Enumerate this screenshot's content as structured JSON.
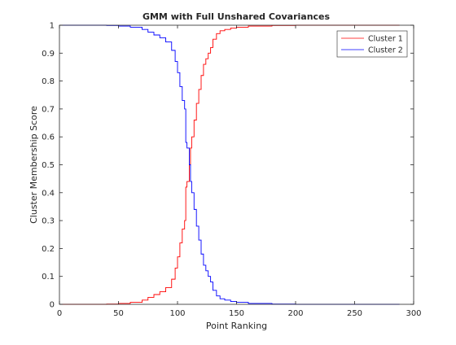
{
  "chart_data": {
    "type": "line",
    "title": "GMM with Full Unshared Covariances",
    "xlabel": "Point Ranking",
    "ylabel": "Cluster Membership Score",
    "xlim": [
      0,
      300
    ],
    "ylim": [
      0,
      1
    ],
    "xticks": [
      0,
      50,
      100,
      150,
      200,
      250,
      300
    ],
    "yticks": [
      0,
      0.1,
      0.2,
      0.3,
      0.4,
      0.5,
      0.6,
      0.7,
      0.8,
      0.9,
      1
    ],
    "grid": false,
    "legend": "top-right",
    "series": [
      {
        "name": "Cluster 1",
        "color": "#ff0000",
        "x": [
          1,
          20,
          40,
          50,
          60,
          70,
          75,
          80,
          85,
          90,
          95,
          98,
          100,
          102,
          104,
          106,
          107,
          108,
          110,
          111,
          112,
          114,
          116,
          118,
          120,
          122,
          124,
          126,
          128,
          130,
          133,
          136,
          140,
          145,
          150,
          160,
          180,
          200,
          250,
          288
        ],
        "values": [
          0,
          0,
          0.001,
          0.003,
          0.007,
          0.015,
          0.025,
          0.035,
          0.045,
          0.06,
          0.09,
          0.13,
          0.17,
          0.22,
          0.27,
          0.3,
          0.42,
          0.44,
          0.5,
          0.56,
          0.6,
          0.66,
          0.72,
          0.77,
          0.82,
          0.86,
          0.88,
          0.9,
          0.92,
          0.95,
          0.97,
          0.98,
          0.985,
          0.99,
          0.993,
          0.997,
          0.999,
          1,
          1,
          1
        ]
      },
      {
        "name": "Cluster 2",
        "color": "#0000ff",
        "x": [
          1,
          20,
          40,
          50,
          60,
          70,
          75,
          80,
          85,
          90,
          95,
          98,
          100,
          102,
          104,
          106,
          107,
          108,
          110,
          111,
          112,
          114,
          116,
          118,
          120,
          122,
          124,
          126,
          128,
          130,
          133,
          136,
          140,
          145,
          150,
          160,
          180,
          200,
          250,
          288
        ],
        "values": [
          1,
          1,
          0.999,
          0.997,
          0.993,
          0.985,
          0.975,
          0.965,
          0.955,
          0.94,
          0.91,
          0.87,
          0.83,
          0.78,
          0.73,
          0.7,
          0.58,
          0.56,
          0.5,
          0.44,
          0.4,
          0.34,
          0.28,
          0.23,
          0.18,
          0.14,
          0.12,
          0.1,
          0.08,
          0.05,
          0.03,
          0.02,
          0.015,
          0.01,
          0.007,
          0.003,
          0.001,
          0,
          0,
          0
        ]
      }
    ]
  }
}
